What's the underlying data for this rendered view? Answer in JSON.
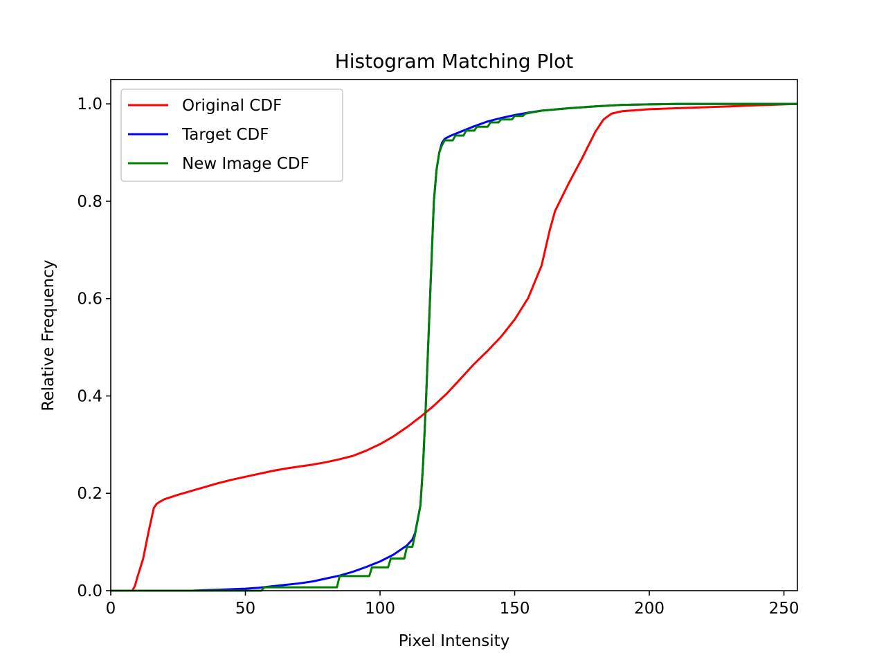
{
  "chart_data": {
    "type": "line",
    "title": "Histogram Matching Plot",
    "xlabel": "Pixel Intensity",
    "ylabel": "Relative Frequency",
    "xlim": [
      0,
      255
    ],
    "ylim": [
      0.0,
      1.05
    ],
    "xticks": [
      0,
      50,
      100,
      150,
      200,
      250
    ],
    "yticks": [
      0.0,
      0.2,
      0.4,
      0.6,
      0.8,
      1.0
    ],
    "xtick_labels": [
      "0",
      "50",
      "100",
      "150",
      "200",
      "250"
    ],
    "ytick_labels": [
      "0.0",
      "0.2",
      "0.4",
      "0.6",
      "0.8",
      "1.0"
    ],
    "grid": false,
    "legend_position": "top-left",
    "series": [
      {
        "name": "Original CDF",
        "color": "#ff0000",
        "points": [
          [
            0,
            0
          ],
          [
            8,
            0
          ],
          [
            9,
            0.01
          ],
          [
            10,
            0.03
          ],
          [
            12,
            0.065
          ],
          [
            14,
            0.12
          ],
          [
            16,
            0.17
          ],
          [
            17,
            0.178
          ],
          [
            18,
            0.182
          ],
          [
            20,
            0.188
          ],
          [
            25,
            0.197
          ],
          [
            30,
            0.205
          ],
          [
            35,
            0.213
          ],
          [
            40,
            0.221
          ],
          [
            45,
            0.228
          ],
          [
            50,
            0.234
          ],
          [
            55,
            0.24
          ],
          [
            60,
            0.246
          ],
          [
            65,
            0.251
          ],
          [
            70,
            0.255
          ],
          [
            75,
            0.259
          ],
          [
            80,
            0.264
          ],
          [
            85,
            0.27
          ],
          [
            90,
            0.277
          ],
          [
            95,
            0.288
          ],
          [
            100,
            0.301
          ],
          [
            105,
            0.317
          ],
          [
            110,
            0.336
          ],
          [
            115,
            0.357
          ],
          [
            120,
            0.38
          ],
          [
            125,
            0.406
          ],
          [
            130,
            0.436
          ],
          [
            135,
            0.466
          ],
          [
            140,
            0.493
          ],
          [
            145,
            0.522
          ],
          [
            150,
            0.557
          ],
          [
            155,
            0.601
          ],
          [
            160,
            0.668
          ],
          [
            163,
            0.74
          ],
          [
            165,
            0.78
          ],
          [
            170,
            0.836
          ],
          [
            175,
            0.888
          ],
          [
            180,
            0.943
          ],
          [
            183,
            0.968
          ],
          [
            186,
            0.98
          ],
          [
            190,
            0.985
          ],
          [
            200,
            0.989
          ],
          [
            210,
            0.991
          ],
          [
            220,
            0.993
          ],
          [
            230,
            0.995
          ],
          [
            240,
            0.997
          ],
          [
            250,
            0.999
          ],
          [
            255,
            1.0
          ]
        ]
      },
      {
        "name": "Target CDF",
        "color": "#0000ff",
        "points": [
          [
            0,
            0
          ],
          [
            30,
            0
          ],
          [
            35,
            0.001
          ],
          [
            40,
            0.002
          ],
          [
            50,
            0.004
          ],
          [
            55,
            0.006
          ],
          [
            60,
            0.009
          ],
          [
            65,
            0.012
          ],
          [
            70,
            0.015
          ],
          [
            75,
            0.019
          ],
          [
            80,
            0.025
          ],
          [
            85,
            0.031
          ],
          [
            90,
            0.039
          ],
          [
            95,
            0.049
          ],
          [
            100,
            0.06
          ],
          [
            105,
            0.074
          ],
          [
            110,
            0.093
          ],
          [
            112,
            0.105
          ],
          [
            113,
            0.118
          ],
          [
            115,
            0.175
          ],
          [
            116,
            0.26
          ],
          [
            117,
            0.38
          ],
          [
            118,
            0.52
          ],
          [
            119,
            0.66
          ],
          [
            120,
            0.8
          ],
          [
            121,
            0.865
          ],
          [
            122,
            0.9
          ],
          [
            123,
            0.92
          ],
          [
            124,
            0.928
          ],
          [
            126,
            0.934
          ],
          [
            130,
            0.943
          ],
          [
            135,
            0.954
          ],
          [
            140,
            0.964
          ],
          [
            145,
            0.971
          ],
          [
            150,
            0.977
          ],
          [
            155,
            0.982
          ],
          [
            160,
            0.986
          ],
          [
            170,
            0.991
          ],
          [
            180,
            0.995
          ],
          [
            190,
            0.998
          ],
          [
            200,
            0.999
          ],
          [
            210,
            1.0
          ],
          [
            255,
            1.0
          ]
        ]
      },
      {
        "name": "New Image CDF",
        "color": "#008000",
        "points": [
          [
            0,
            0
          ],
          [
            56,
            0
          ],
          [
            57,
            0.007
          ],
          [
            84,
            0.007
          ],
          [
            85,
            0.03
          ],
          [
            96,
            0.03
          ],
          [
            97,
            0.048
          ],
          [
            103,
            0.048
          ],
          [
            104,
            0.066
          ],
          [
            109,
            0.066
          ],
          [
            110,
            0.09
          ],
          [
            112,
            0.09
          ],
          [
            113,
            0.115
          ],
          [
            115,
            0.175
          ],
          [
            116,
            0.26
          ],
          [
            117,
            0.38
          ],
          [
            118,
            0.52
          ],
          [
            119,
            0.66
          ],
          [
            120,
            0.8
          ],
          [
            121,
            0.865
          ],
          [
            122,
            0.9
          ],
          [
            123,
            0.915
          ],
          [
            124,
            0.925
          ],
          [
            127,
            0.925
          ],
          [
            128,
            0.935
          ],
          [
            131,
            0.935
          ],
          [
            132,
            0.945
          ],
          [
            135,
            0.945
          ],
          [
            136,
            0.953
          ],
          [
            140,
            0.953
          ],
          [
            141,
            0.962
          ],
          [
            144,
            0.962
          ],
          [
            145,
            0.968
          ],
          [
            149,
            0.968
          ],
          [
            150,
            0.975
          ],
          [
            153,
            0.975
          ],
          [
            154,
            0.98
          ],
          [
            160,
            0.986
          ],
          [
            170,
            0.991
          ],
          [
            180,
            0.995
          ],
          [
            190,
            0.998
          ],
          [
            200,
            0.999
          ],
          [
            210,
            1.0
          ],
          [
            255,
            1.0
          ]
        ]
      }
    ]
  }
}
